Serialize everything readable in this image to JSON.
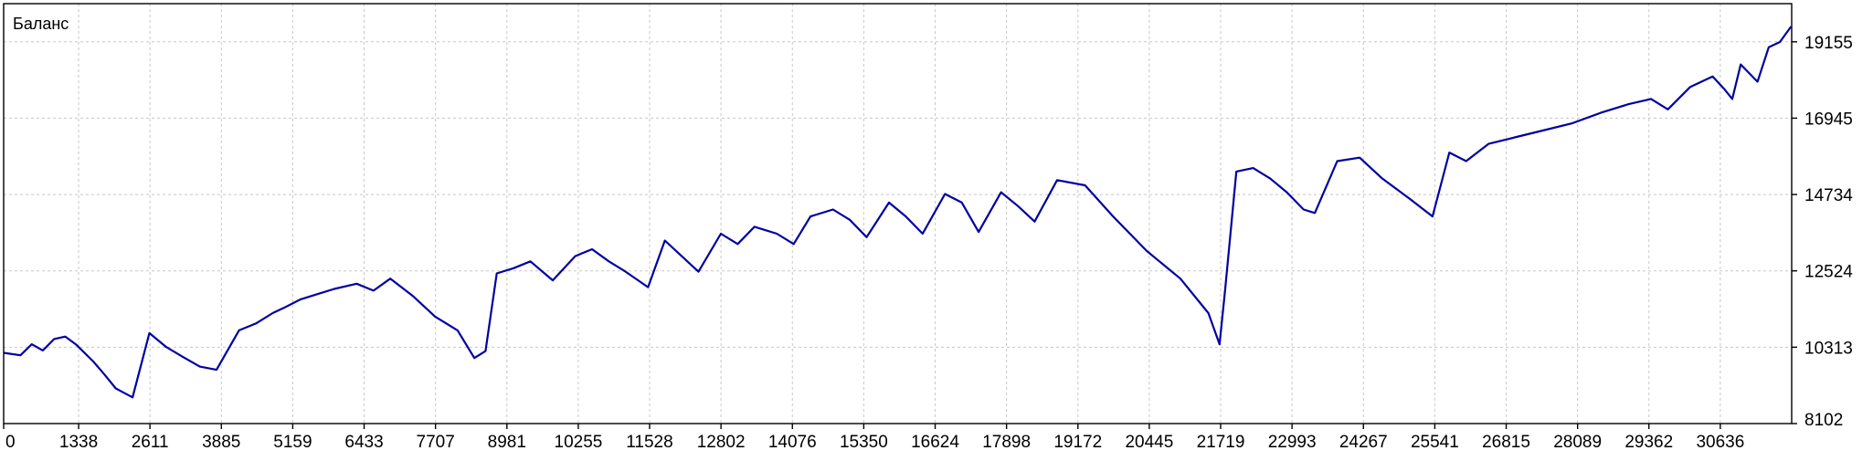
{
  "chart_data": {
    "type": "line",
    "title": "Баланс",
    "xlabel": "",
    "ylabel": "",
    "xlim": [
      0,
      31910
    ],
    "ylim": [
      8102,
      20260
    ],
    "grid": true,
    "x_ticks": [
      "0",
      "1338",
      "2611",
      "3885",
      "5159",
      "6433",
      "7707",
      "8981",
      "10255",
      "11528",
      "12802",
      "14076",
      "15350",
      "16624",
      "17898",
      "19172",
      "20445",
      "21719",
      "22993",
      "24267",
      "25541",
      "26815",
      "28089",
      "29362",
      "30636"
    ],
    "y_ticks": [
      "8102",
      "10313",
      "12524",
      "14734",
      "16945",
      "19155"
    ],
    "series": [
      {
        "name": "",
        "color": "#0000a0",
        "x": [
          0,
          300,
          500,
          700,
          900,
          1100,
          1300,
          1600,
          1800,
          2000,
          2300,
          2600,
          2900,
          3200,
          3500,
          3800,
          4200,
          4500,
          4800,
          5000,
          5300,
          5600,
          5900,
          6300,
          6600,
          6900,
          7300,
          7700,
          8100,
          8400,
          8600,
          8800,
          9100,
          9400,
          9800,
          10200,
          10500,
          10800,
          11100,
          11500,
          11800,
          12100,
          12400,
          12800,
          13100,
          13400,
          13800,
          14100,
          14400,
          14800,
          15100,
          15400,
          15800,
          16100,
          16400,
          16800,
          17100,
          17400,
          17800,
          18100,
          18400,
          18800,
          19300,
          19800,
          20400,
          21000,
          21500,
          21700,
          21800,
          22000,
          22300,
          22600,
          22900,
          23200,
          23400,
          23800,
          24200,
          24600,
          25100,
          25500,
          25800,
          26100,
          26500,
          27000,
          27500,
          28000,
          28500,
          29000,
          29400,
          29700,
          30100,
          30500,
          30700,
          30850,
          31000,
          31300,
          31500,
          31700,
          31900
        ],
        "values": [
          10150,
          10080,
          10400,
          10220,
          10550,
          10620,
          10380,
          9900,
          9520,
          9120,
          8860,
          10720,
          10320,
          10030,
          9750,
          9660,
          10800,
          11000,
          11300,
          11450,
          11700,
          11850,
          12000,
          12150,
          11950,
          12300,
          11800,
          11200,
          10800,
          10000,
          10200,
          12450,
          12600,
          12800,
          12250,
          12950,
          13150,
          12800,
          12500,
          12050,
          13400,
          12950,
          12500,
          13600,
          13300,
          13800,
          13600,
          13300,
          14100,
          14300,
          14000,
          13500,
          14500,
          14100,
          13600,
          14750,
          14500,
          13650,
          14800,
          14400,
          13950,
          15150,
          15000,
          14100,
          13100,
          12300,
          11300,
          10400,
          12000,
          15400,
          15500,
          15200,
          14800,
          14300,
          14200,
          15700,
          15800,
          15200,
          14600,
          14100,
          15950,
          15700,
          16200,
          16400,
          16600,
          16800,
          17100,
          17350,
          17500,
          17200,
          17850,
          18150,
          17800,
          17500,
          18500,
          18000,
          19000,
          19150,
          19600
        ]
      }
    ]
  }
}
